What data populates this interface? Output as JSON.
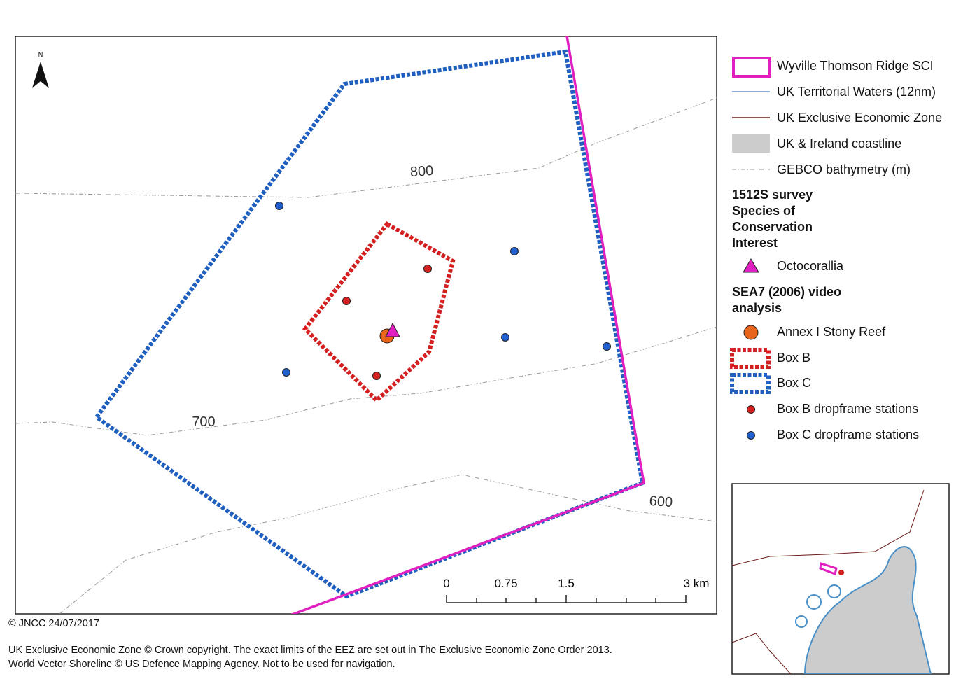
{
  "map": {
    "north": "N",
    "contour_labels": [
      "800",
      "700",
      "600"
    ],
    "scale_labels": [
      "0",
      "0.75",
      "1.5",
      "3 km"
    ]
  },
  "legend": {
    "items": [
      "Wyville Thomson Ridge SCI",
      "UK Territorial Waters (12nm)",
      "UK Exclusive Economic Zone",
      "UK & Ireland coastline",
      "GEBCO bathymetry (m)"
    ],
    "sections": [
      {
        "title": "1512S survey Species of Conservation Interest",
        "items": [
          "Octocorallia"
        ]
      },
      {
        "title": "SEA7 (2006) video analysis",
        "items": [
          "Annex I Stony Reef",
          "Box B",
          "Box C",
          "Box B dropframe stations",
          "Box C dropframe stations"
        ]
      }
    ]
  },
  "footer": {
    "date": "© JNCC 24/07/2017",
    "lines": [
      "UK Exclusive Economic Zone © Crown copyright. The exact limits of the EEZ are set out in The Exclusive Economic Zone Order 2013.",
      "World Vector Shoreline © US Defence Mapping Agency. Not to be used for navigation."
    ]
  }
}
